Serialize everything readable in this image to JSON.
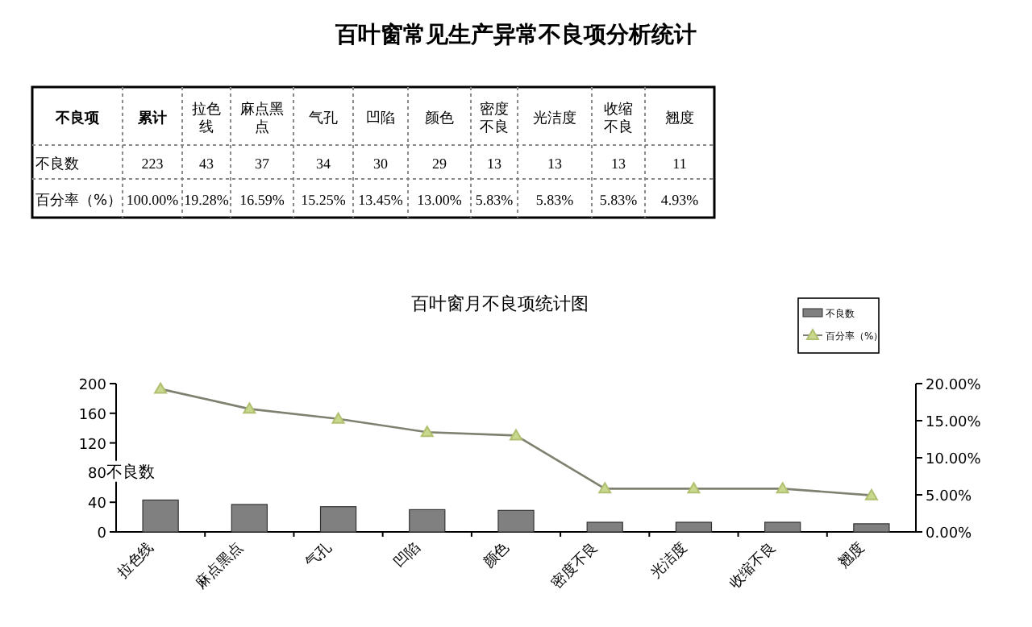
{
  "chart_data": [
    {
      "type": "other",
      "title": "百叶窗常见生产异常不良项分析统计",
      "annotations": [
        "不良项"
      ],
      "categories": [
        "累计",
        "拉色线",
        "麻点黑点",
        "气孔",
        "凹陷",
        "颜色",
        "密度不良",
        "光洁度",
        "收缩不良",
        "翘度"
      ],
      "y_categories": [
        "不良数",
        "百分率（%）"
      ],
      "cell_labels": [
        [
          "223",
          "43",
          "37",
          "34",
          "30",
          "29",
          "13",
          "13",
          "13",
          "11"
        ],
        [
          "100.00%",
          "19.28%",
          "16.59%",
          "15.25%",
          "13.45%",
          "13.00%",
          "5.83%",
          "5.83%",
          "5.83%",
          "4.93%"
        ]
      ]
    },
    {
      "type": "bar",
      "title": "百叶窗月不良项统计图",
      "ylabel": "不良数",
      "categories": [
        "拉色线",
        "麻点黑点",
        "气孔",
        "凹陷",
        "颜色",
        "密度不良",
        "光洁度",
        "收缩不良",
        "翘度"
      ],
      "series": [
        {
          "name": "不良数",
          "type": "bar",
          "color": "#808080",
          "values": [
            43,
            37,
            34,
            30,
            29,
            13,
            13,
            13,
            11
          ]
        },
        {
          "name": "百分率（%）",
          "type": "line",
          "axis": "y2",
          "color": "#808070",
          "marker": "triangle",
          "values": [
            19.28,
            16.59,
            15.25,
            13.45,
            13.0,
            5.83,
            5.83,
            5.83,
            4.93
          ]
        }
      ],
      "ylim": [
        0,
        200
      ],
      "yticks": [
        0,
        40,
        80,
        120,
        160,
        200
      ],
      "y2lim": [
        0,
        20
      ],
      "y2ticks": [
        {
          "value": 0,
          "label": "0.00%"
        },
        {
          "value": 5,
          "label": "5.00%"
        },
        {
          "value": 10,
          "label": "10.00%"
        },
        {
          "value": 15,
          "label": "15.00%"
        },
        {
          "value": 20,
          "label": "20.00%"
        }
      ],
      "legend": "top right",
      "grid": false
    }
  ]
}
